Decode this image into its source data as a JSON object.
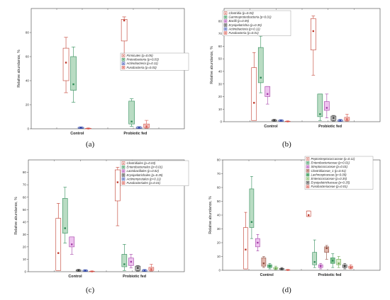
{
  "figure": {
    "captions": [
      "(a)",
      "(b)",
      "(c)",
      "(d)"
    ]
  },
  "chart_data": [
    {
      "panel": "a",
      "type": "box",
      "categories": [
        "Control",
        "Probiotic fed"
      ],
      "ylabel": "Relative abundance, %",
      "ylim": [
        0,
        100
      ],
      "yticks": [
        0,
        20,
        40,
        60,
        80
      ],
      "grid": false,
      "legend_position": "right",
      "series": [
        {
          "name": "Firmicutes (p=0.05)",
          "color": "#c0392b",
          "fill": "#ffffff",
          "boxes": [
            {
              "whisker_low": 30,
              "q1": 40,
              "median": 55,
              "q3": 67,
              "whisker_high": 76
            },
            {
              "whisker_low": 60,
              "q1": 73,
              "median": 90,
              "q3": 91,
              "whisker_high": 93
            }
          ]
        },
        {
          "name": "Proteobacteria (p=0.03)",
          "color": "#2e8b57",
          "fill": "#b9dcc3",
          "boxes": [
            {
              "whisker_low": 22,
              "q1": 32,
              "median": 37,
              "q3": 60,
              "whisker_high": 68
            },
            {
              "whisker_low": 2,
              "q1": 4,
              "median": 6,
              "q3": 23,
              "whisker_high": 25
            }
          ]
        },
        {
          "name": "Actinobacteria (p=0.11)",
          "color": "#3248a8",
          "fill": "#c9d0f0",
          "boxes": [
            {
              "whisker_low": 0.2,
              "q1": 0.5,
              "median": 0.8,
              "q3": 1.2,
              "whisker_high": 1.6
            },
            {
              "whisker_low": 0.2,
              "q1": 0.5,
              "median": 0.9,
              "q3": 1.3,
              "whisker_high": 1.8
            }
          ]
        },
        {
          "name": "Fusobacteria (p=0.03)",
          "color": "#d4574e",
          "fill": "#f3c3bf",
          "boxes": [
            {
              "whisker_low": 0,
              "q1": 0.1,
              "median": 0.2,
              "q3": 0.4,
              "whisker_high": 0.6
            },
            {
              "whisker_low": 0.5,
              "q1": 1,
              "median": 2,
              "q3": 4,
              "whisker_high": 7
            }
          ]
        }
      ]
    },
    {
      "panel": "b",
      "type": "box",
      "categories": [
        "Control",
        "Probiotic fed"
      ],
      "ylabel": "Relative abundance, %",
      "ylim": [
        0,
        90
      ],
      "yticks": [
        0,
        10,
        20,
        30,
        40,
        50,
        60,
        70,
        80
      ],
      "grid": false,
      "legend_position": "top-left",
      "series": [
        {
          "name": "Clostridia (p=0.03)",
          "color": "#c0392b",
          "fill": "#ffffff",
          "boxes": [
            {
              "whisker_low": 1,
              "q1": 1,
              "median": 15,
              "q3": 43,
              "whisker_high": 55
            },
            {
              "whisker_low": 37,
              "q1": 57,
              "median": 72,
              "q3": 82,
              "whisker_high": 84
            }
          ]
        },
        {
          "name": "Gammaproteobacteria (p=0.01)",
          "color": "#2e8b57",
          "fill": "#b9dcc3",
          "boxes": [
            {
              "whisker_low": 23,
              "q1": 31,
              "median": 35,
              "q3": 59,
              "whisker_high": 68
            },
            {
              "whisker_low": 1,
              "q1": 4,
              "median": 6,
              "q3": 22,
              "whisker_high": 22
            }
          ]
        },
        {
          "name": "Bacilli (p=0.05)",
          "color": "#a23ea6",
          "fill": "#eec3ef",
          "boxes": [
            {
              "whisker_low": 14,
              "q1": 20,
              "median": 22,
              "q3": 28,
              "whisker_high": 28
            },
            {
              "whisker_low": 3,
              "q1": 9,
              "median": 11,
              "q3": 16,
              "whisker_high": 22
            }
          ]
        },
        {
          "name": "Erysipelotrichia (p=0.35)",
          "color": "#3a3a3a",
          "fill": "#b8b8b8",
          "boxes": [
            {
              "whisker_low": 0.3,
              "q1": 0.6,
              "median": 1,
              "q3": 1.4,
              "whisker_high": 2
            },
            {
              "whisker_low": 0.5,
              "q1": 1,
              "median": 3,
              "q3": 4.5,
              "whisker_high": 5
            }
          ]
        },
        {
          "name": "Actinobacteria (p=0.11)",
          "color": "#3248a8",
          "fill": "#c9d0f0",
          "boxes": [
            {
              "whisker_low": 0.2,
              "q1": 0.5,
              "median": 0.8,
              "q3": 1.2,
              "whisker_high": 1.6
            },
            {
              "whisker_low": 0.2,
              "q1": 0.5,
              "median": 0.9,
              "q3": 1.3,
              "whisker_high": 1.8
            }
          ]
        },
        {
          "name": "Fusobacteria (p=0.01)",
          "color": "#d4574e",
          "fill": "#f3c3bf",
          "boxes": [
            {
              "whisker_low": 0,
              "q1": 0.1,
              "median": 0.2,
              "q3": 0.4,
              "whisker_high": 0.6
            },
            {
              "whisker_low": 0.5,
              "q1": 1,
              "median": 2,
              "q3": 3.5,
              "whisker_high": 6
            }
          ]
        }
      ]
    },
    {
      "panel": "c",
      "type": "box",
      "categories": [
        "Control",
        "Probiotic fed"
      ],
      "ylabel": "Relative abundance, %",
      "ylim": [
        0,
        90
      ],
      "yticks": [
        0,
        10,
        20,
        30,
        40,
        50,
        60,
        70,
        80
      ],
      "grid": false,
      "legend_position": "top-left",
      "series": [
        {
          "name": "Clostridiales (p=0.03)",
          "color": "#c0392b",
          "fill": "#ffffff",
          "boxes": [
            {
              "whisker_low": 1,
              "q1": 1,
              "median": 15,
              "q3": 43,
              "whisker_high": 55
            },
            {
              "whisker_low": 37,
              "q1": 57,
              "median": 72,
              "q3": 82,
              "whisker_high": 84
            }
          ]
        },
        {
          "name": "Enterobacteriales (p=0.01)",
          "color": "#2e8b57",
          "fill": "#b9dcc3",
          "boxes": [
            {
              "whisker_low": 23,
              "q1": 31,
              "median": 35,
              "q3": 59,
              "whisker_high": 68
            },
            {
              "whisker_low": 1,
              "q1": 4,
              "median": 6,
              "q3": 14,
              "whisker_high": 22
            }
          ]
        },
        {
          "name": "Lactobacillales (p=0.02)",
          "color": "#a23ea6",
          "fill": "#eec3ef",
          "boxes": [
            {
              "whisker_low": 14,
              "q1": 20,
              "median": 22,
              "q3": 28,
              "whisker_high": 28
            },
            {
              "whisker_low": 3,
              "q1": 5,
              "median": 8,
              "q3": 11,
              "whisker_high": 14
            }
          ]
        },
        {
          "name": "Erysipelotrichales (p=0.35)",
          "color": "#3a3a3a",
          "fill": "#b8b8b8",
          "boxes": [
            {
              "whisker_low": 0.3,
              "q1": 0.6,
              "median": 1,
              "q3": 1.4,
              "whisker_high": 2
            },
            {
              "whisker_low": 0.5,
              "q1": 1,
              "median": 3,
              "q3": 4.5,
              "whisker_high": 5
            }
          ]
        },
        {
          "name": "Actinomycetales (p=0.11)",
          "color": "#3248a8",
          "fill": "#c9d0f0",
          "boxes": [
            {
              "whisker_low": 0.2,
              "q1": 0.5,
              "median": 0.8,
              "q3": 1.2,
              "whisker_high": 1.6
            },
            {
              "whisker_low": 0.2,
              "q1": 0.5,
              "median": 0.9,
              "q3": 1.3,
              "whisker_high": 1.8
            }
          ]
        },
        {
          "name": "Fusobacteriales (p=0.01)",
          "color": "#d4574e",
          "fill": "#f3c3bf",
          "boxes": [
            {
              "whisker_low": 0,
              "q1": 0.1,
              "median": 0.2,
              "q3": 0.4,
              "whisker_high": 0.6
            },
            {
              "whisker_low": 0.5,
              "q1": 1,
              "median": 2,
              "q3": 3.5,
              "whisker_high": 6
            }
          ]
        }
      ]
    },
    {
      "panel": "d",
      "type": "box",
      "categories": [
        "Control",
        "Probiotic fed"
      ],
      "ylabel": "Relative abundance, %",
      "ylim": [
        0,
        80
      ],
      "yticks": [
        0,
        10,
        20,
        30,
        40,
        50,
        60,
        70,
        80
      ],
      "grid": false,
      "legend_position": "top-left",
      "series": [
        {
          "name": "Peptostreptococcaceae (p=0.11)",
          "color": "#c0392b",
          "fill": "#ffffff",
          "boxes": [
            {
              "whisker_low": 1,
              "q1": 1,
              "median": 15,
              "q3": 31,
              "whisker_high": 42
            },
            {
              "whisker_low": 39,
              "q1": 39,
              "median": 40,
              "q3": 43,
              "whisker_high": 43
            }
          ]
        },
        {
          "name": "Enterobacteriaceae (p=0.01)",
          "color": "#2e8b57",
          "fill": "#b9dcc3",
          "boxes": [
            {
              "whisker_low": 23,
              "q1": 31,
              "median": 35,
              "q3": 59,
              "whisker_high": 68
            },
            {
              "whisker_low": 2,
              "q1": 4,
              "median": 6,
              "q3": 13,
              "whisker_high": 22
            }
          ]
        },
        {
          "name": "Streptococcaceae (p=0.01)",
          "color": "#a23ea6",
          "fill": "#eec3ef",
          "boxes": [
            {
              "whisker_low": 14,
              "q1": 17,
              "median": 20,
              "q3": 23,
              "whisker_high": 26
            },
            {
              "whisker_low": 1,
              "q1": 2,
              "median": 3,
              "q3": 4,
              "whisker_high": 5
            }
          ]
        },
        {
          "name": "Clostridiaceae_1 (p=0.01)",
          "color": "#8b4a3c",
          "fill": "#e0b5ab",
          "boxes": [
            {
              "whisker_low": 2,
              "q1": 3,
              "median": 5,
              "q3": 9,
              "whisker_high": 10
            },
            {
              "whisker_low": 8,
              "q1": 13,
              "median": 16,
              "q3": 17,
              "whisker_high": 18
            }
          ]
        },
        {
          "name": "Lachnospiraceae (p=0.09)",
          "color": "#2e8b57",
          "fill": "#7fc48f",
          "boxes": [
            {
              "whisker_low": 1,
              "q1": 2,
              "median": 3,
              "q3": 4,
              "whisker_high": 5
            },
            {
              "whisker_low": 2,
              "q1": 5,
              "median": 7,
              "q3": 9,
              "whisker_high": 12
            }
          ]
        },
        {
          "name": "Enterococcaceae (p=0.35)",
          "color": "#6aa84f",
          "fill": "#d9ecc9",
          "boxes": [
            {
              "whisker_low": 0.5,
              "q1": 1,
              "median": 1.5,
              "q3": 2,
              "whisker_high": 3
            },
            {
              "whisker_low": 2,
              "q1": 4,
              "median": 5,
              "q3": 8,
              "whisker_high": 10
            }
          ]
        },
        {
          "name": "Erysipelotrichaceae (p=0.35)",
          "color": "#3a3a3a",
          "fill": "#b8b8b8",
          "boxes": [
            {
              "whisker_low": 0.3,
              "q1": 0.6,
              "median": 1,
              "q3": 1.4,
              "whisker_high": 2
            },
            {
              "whisker_low": 1,
              "q1": 2,
              "median": 3,
              "q3": 4,
              "whisker_high": 5
            }
          ]
        },
        {
          "name": "Fusobacteriaceae (p=0.01)",
          "color": "#d4574e",
          "fill": "#f3c3bf",
          "boxes": [
            {
              "whisker_low": 0,
              "q1": 0.1,
              "median": 0.2,
              "q3": 0.4,
              "whisker_high": 0.6
            },
            {
              "whisker_low": 1,
              "q1": 1.5,
              "median": 2,
              "q3": 3,
              "whisker_high": 4
            }
          ]
        }
      ]
    }
  ]
}
